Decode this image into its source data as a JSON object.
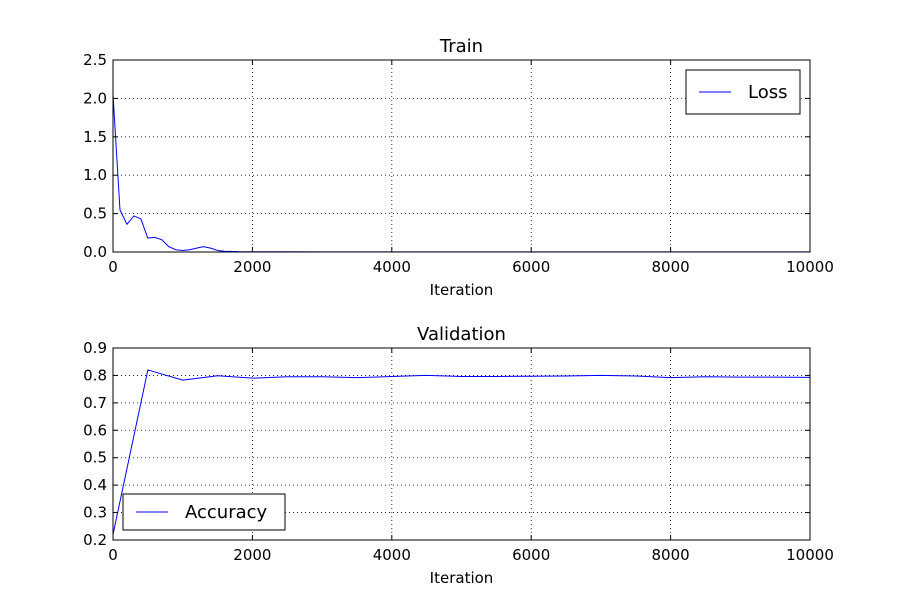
{
  "chart_data": [
    {
      "type": "line",
      "title": "Train",
      "xlabel": "Iteration",
      "ylabel": "",
      "xlim": [
        0,
        10000
      ],
      "ylim": [
        0,
        2.5
      ],
      "xticks": [
        0,
        2000,
        4000,
        6000,
        8000,
        10000
      ],
      "xtick_labels": [
        "0",
        "2000",
        "4000",
        "6000",
        "8000",
        "10000"
      ],
      "yticks": [
        0,
        0.5,
        1.0,
        1.5,
        2.0,
        2.5
      ],
      "ytick_labels": [
        "0.0",
        "0.5",
        "1.0",
        "1.5",
        "2.0",
        "2.5"
      ],
      "grid": true,
      "legend_position": "top-right",
      "series": [
        {
          "name": "Loss",
          "color": "#0000ff",
          "x": [
            0,
            100,
            200,
            300,
            400,
            500,
            600,
            700,
            800,
            900,
            1000,
            1100,
            1200,
            1300,
            1400,
            1500,
            1600,
            1800,
            2000,
            2500,
            3000,
            4000,
            5000,
            6000,
            7000,
            8000,
            9000,
            10000
          ],
          "y": [
            2.05,
            0.55,
            0.36,
            0.47,
            0.43,
            0.18,
            0.19,
            0.16,
            0.07,
            0.03,
            0.02,
            0.03,
            0.05,
            0.07,
            0.05,
            0.02,
            0.01,
            0.005,
            0.004,
            0.003,
            0.002,
            0.002,
            0.001,
            0.001,
            0.001,
            0.001,
            0.001,
            0.001
          ]
        }
      ]
    },
    {
      "type": "line",
      "title": "Validation",
      "xlabel": "Iteration",
      "ylabel": "",
      "xlim": [
        0,
        10000
      ],
      "ylim": [
        0.2,
        0.9
      ],
      "xticks": [
        0,
        2000,
        4000,
        6000,
        8000,
        10000
      ],
      "xtick_labels": [
        "0",
        "2000",
        "4000",
        "6000",
        "8000",
        "10000"
      ],
      "yticks": [
        0.2,
        0.3,
        0.4,
        0.5,
        0.6,
        0.7,
        0.8,
        0.9
      ],
      "ytick_labels": [
        "0.2",
        "0.3",
        "0.4",
        "0.5",
        "0.6",
        "0.7",
        "0.8",
        "0.9"
      ],
      "grid": true,
      "legend_position": "bottom-left",
      "series": [
        {
          "name": "Accuracy",
          "color": "#0000ff",
          "x": [
            0,
            500,
            1000,
            1500,
            2000,
            2500,
            3000,
            3500,
            4000,
            4500,
            5000,
            5500,
            6000,
            6500,
            7000,
            7500,
            8000,
            8500,
            9000,
            9500,
            10000
          ],
          "y": [
            0.22,
            0.82,
            0.783,
            0.799,
            0.79,
            0.795,
            0.795,
            0.792,
            0.796,
            0.8,
            0.796,
            0.796,
            0.797,
            0.798,
            0.8,
            0.798,
            0.792,
            0.795,
            0.794,
            0.794,
            0.793
          ]
        }
      ]
    }
  ]
}
